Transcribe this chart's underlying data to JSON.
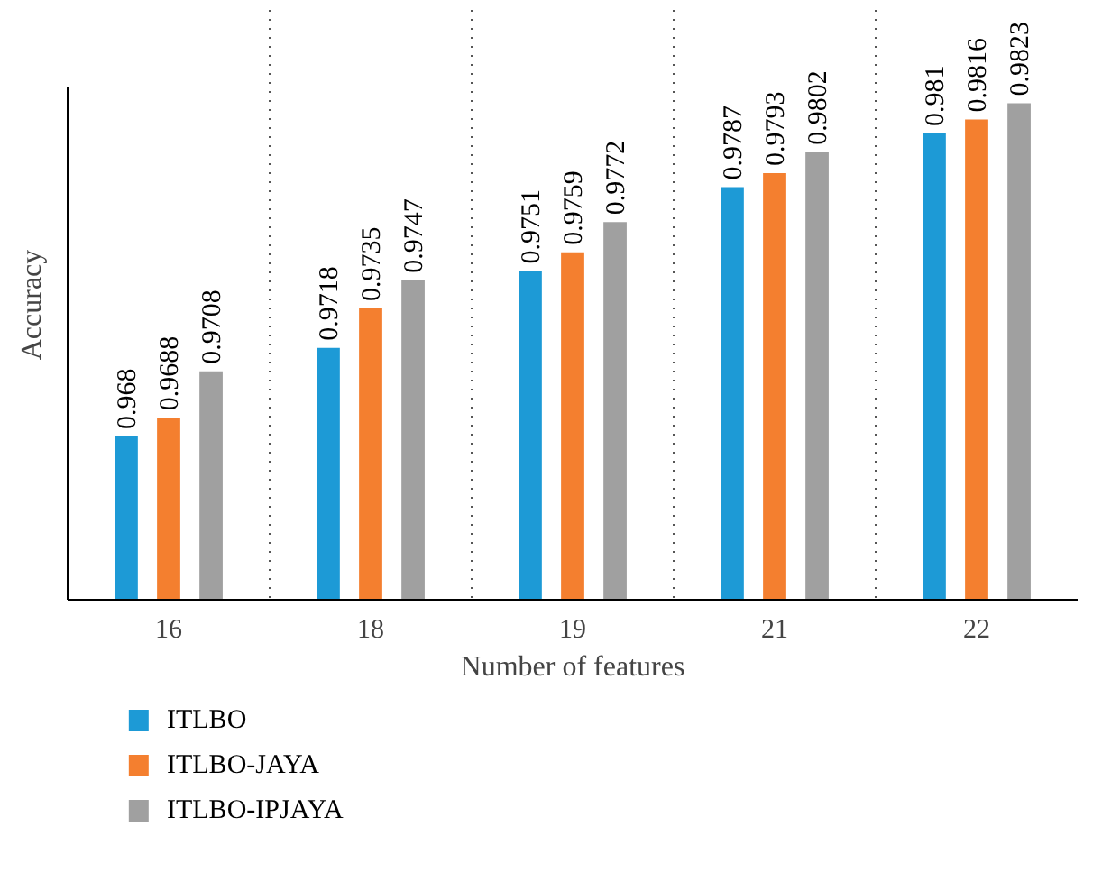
{
  "chart_data": {
    "type": "bar",
    "xlabel": "Number of features",
    "ylabel": "Accuracy",
    "categories": [
      "16",
      "18",
      "19",
      "21",
      "22"
    ],
    "series": [
      {
        "name": "ITLBO",
        "color": "#1d9ad6",
        "values": [
          0.968,
          0.9718,
          0.9751,
          0.9787,
          0.981
        ]
      },
      {
        "name": "ITLBO-JAYA",
        "color": "#f47f2f",
        "values": [
          0.9688,
          0.9735,
          0.9759,
          0.9793,
          0.9816
        ]
      },
      {
        "name": "ITLBO-IPJAYA",
        "color": "#a0a0a0",
        "values": [
          0.9708,
          0.9747,
          0.9772,
          0.9802,
          0.9823
        ]
      }
    ],
    "ylim": [
      0.961,
      0.983
    ],
    "tick_labels": "x",
    "data_labels": true,
    "grid": "x",
    "legend": "bottom"
  }
}
